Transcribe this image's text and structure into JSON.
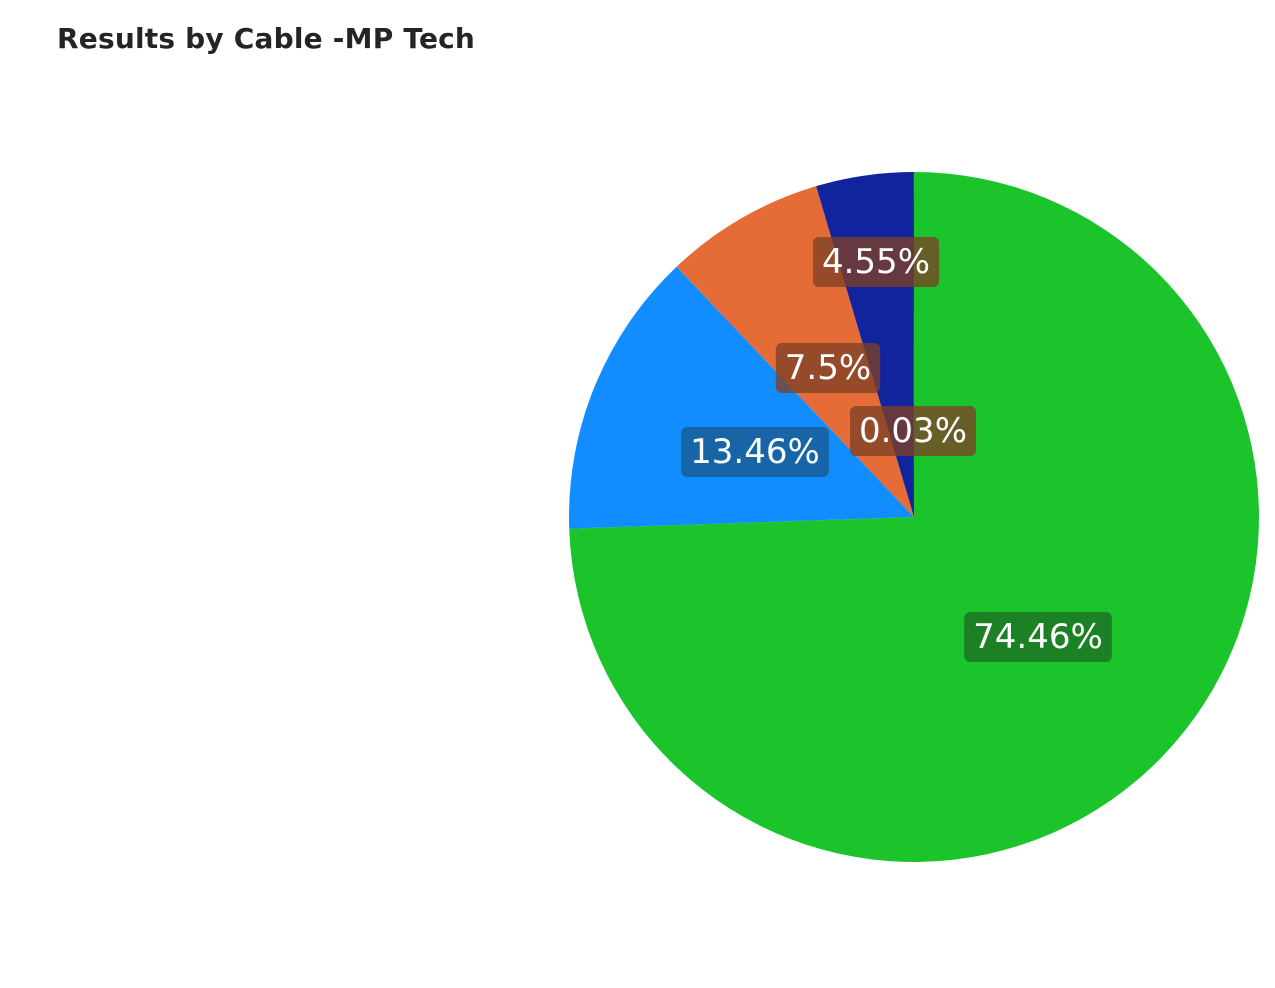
{
  "chart_data": {
    "type": "pie",
    "title": "Results by Cable -MP Tech",
    "slices": [
      {
        "value": 74.46,
        "label": "74.46%",
        "color": "#1AC42A",
        "label_bg": "#1E6E22"
      },
      {
        "value": 13.46,
        "label": "13.46%",
        "color": "#118DFF",
        "label_bg": "#1A5A8E"
      },
      {
        "value": 7.5,
        "label": "7.5%",
        "color": "#E66C37",
        "label_bg": "#7E4026"
      },
      {
        "value": 4.55,
        "label": "4.55%",
        "color": "#12239E",
        "label_bg": "#7E4026"
      },
      {
        "value": 0.03,
        "label": "0.03%",
        "color": "#6B007B",
        "label_bg": "#7E4026"
      }
    ]
  }
}
